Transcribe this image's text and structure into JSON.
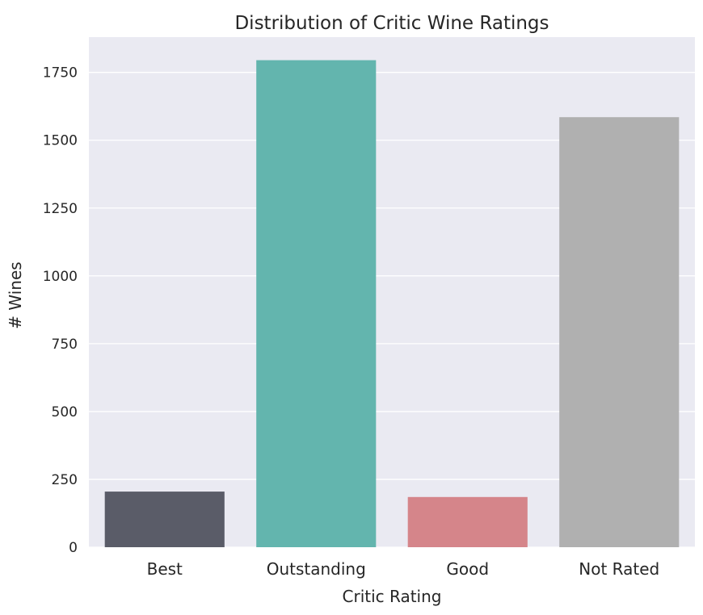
{
  "chart_data": {
    "type": "bar",
    "title": "Distribution of Critic Wine Ratings",
    "xlabel": "Critic Rating",
    "ylabel": "# Wines",
    "categories": [
      "Best",
      "Outstanding",
      "Good",
      "Not Rated"
    ],
    "values": [
      205,
      1795,
      185,
      1585
    ],
    "colors": [
      "#5a5c68",
      "#63b5ae",
      "#d5858a",
      "#b0b0b0"
    ],
    "ylim": [
      0,
      1880
    ],
    "yticks": [
      0,
      250,
      500,
      750,
      1000,
      1250,
      1500,
      1750
    ],
    "grid": true,
    "plot_background": "#eaeaf2",
    "grid_color": "#ffffff"
  }
}
